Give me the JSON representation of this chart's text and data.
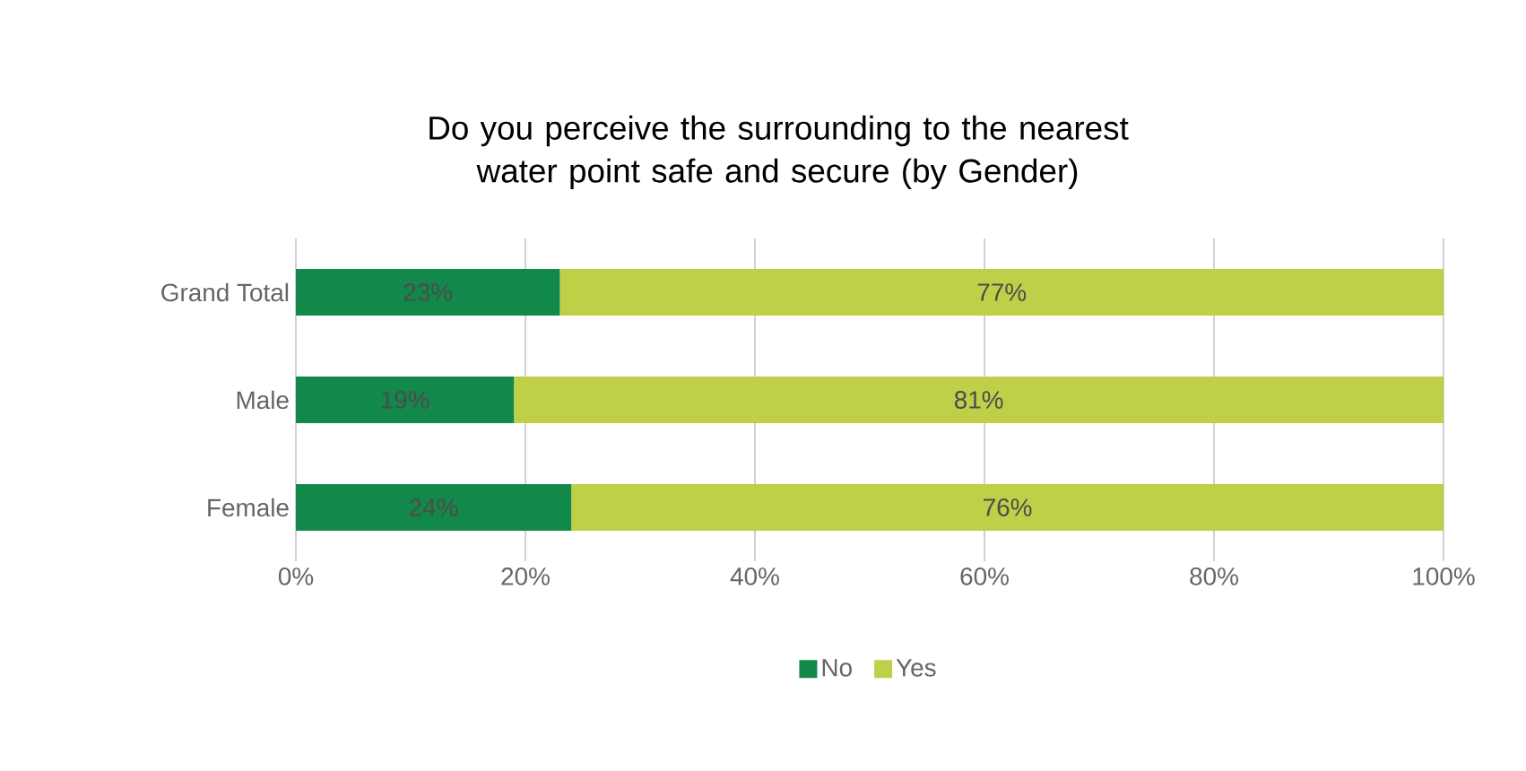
{
  "chart_data": {
    "type": "bar",
    "orientation": "horizontal",
    "stacked": true,
    "title": "Do you perceive the surrounding to the nearest water point safe and secure (by Gender)",
    "categories": [
      "Grand Total",
      "Male",
      "Female"
    ],
    "series": [
      {
        "name": "No",
        "color": "#12884a",
        "values": [
          23,
          19,
          24
        ],
        "value_labels": [
          "23%",
          "19%",
          "24%"
        ]
      },
      {
        "name": "Yes",
        "color": "#bfd048",
        "values": [
          77,
          81,
          76
        ],
        "value_labels": [
          "77%",
          "81%",
          "76%"
        ]
      }
    ],
    "xlim": [
      0,
      100
    ],
    "xticks": [
      {
        "value": 0,
        "label": "0%"
      },
      {
        "value": 20,
        "label": "20%"
      },
      {
        "value": 40,
        "label": "40%"
      },
      {
        "value": 60,
        "label": "60%"
      },
      {
        "value": 80,
        "label": "80%"
      },
      {
        "value": 100,
        "label": "100%"
      }
    ],
    "grid": "x",
    "legend": "bottom"
  }
}
